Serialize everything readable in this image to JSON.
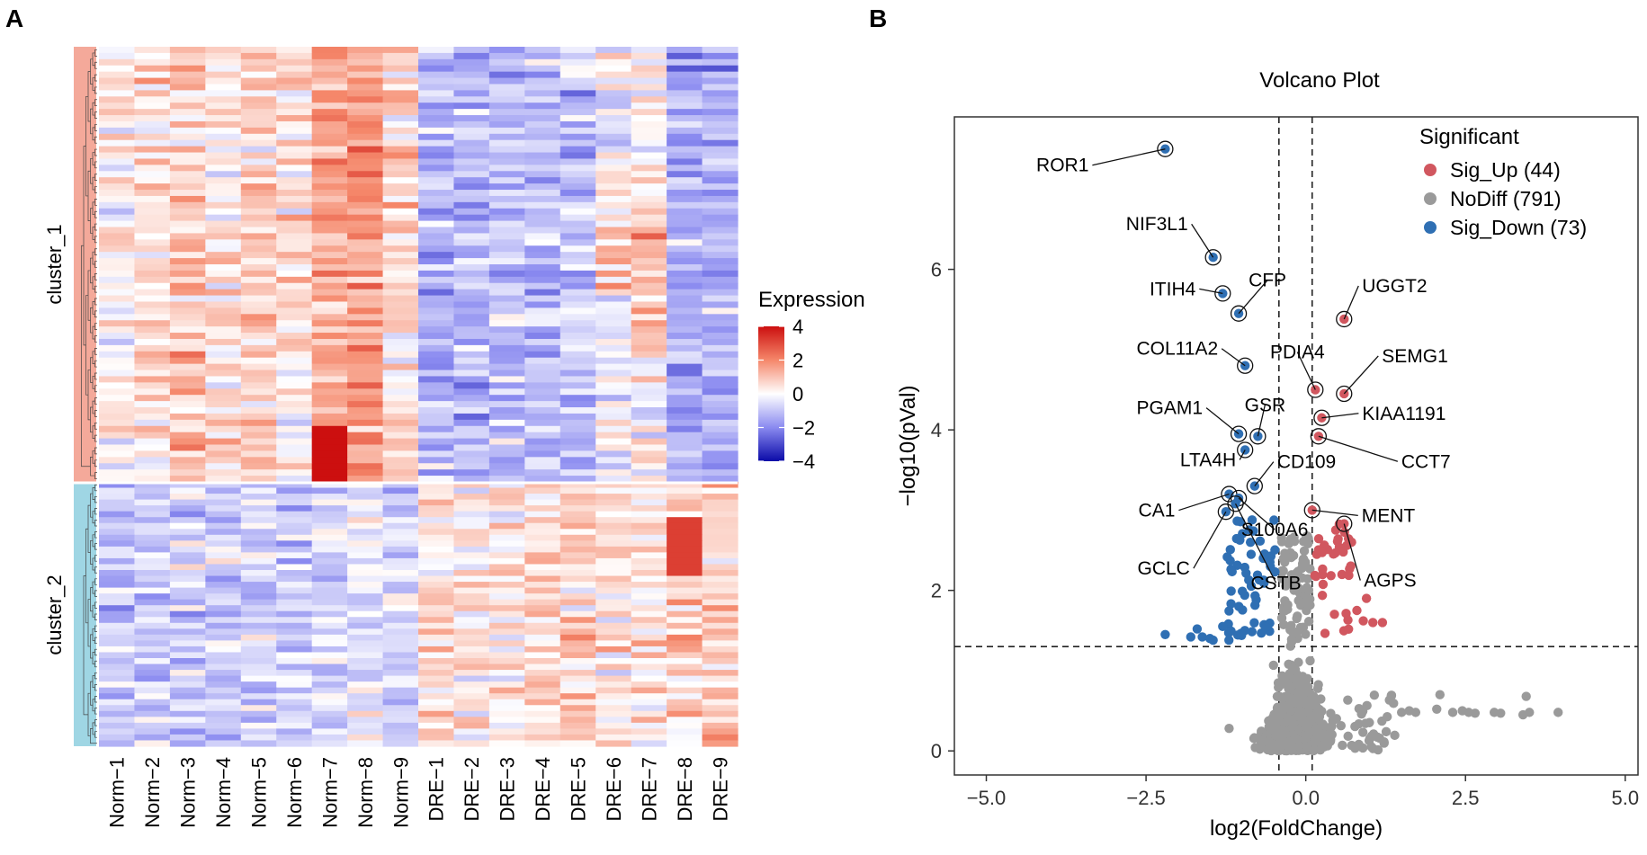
{
  "panel_labels": [
    "A",
    "B"
  ],
  "heatmap": {
    "samples": [
      "Norm−1",
      "Norm−2",
      "Norm−3",
      "Norm−4",
      "Norm−5",
      "Norm−6",
      "Norm−7",
      "Norm−8",
      "Norm−9",
      "DRE−1",
      "DRE−2",
      "DRE−3",
      "DRE−4",
      "DRE−5",
      "DRE−6",
      "DRE−7",
      "DRE−8",
      "DRE−9"
    ],
    "clusters": [
      {
        "name": "cluster_1",
        "color": "#f4a99a"
      },
      {
        "name": "cluster_2",
        "color": "#9fd6e4"
      }
    ],
    "legend_title": "Expression",
    "legend_ticks": [
      "4",
      "2",
      "0",
      "−2",
      "−4"
    ],
    "legend_values": [
      4,
      2,
      0,
      -2,
      -4
    ],
    "colors": {
      "low": "#1a1ab5",
      "mid": "#ffffff",
      "high": "#e0261c"
    }
  },
  "chart_data": {
    "type": "scatter",
    "title": "Volcano Plot",
    "xlabel": "log2(FoldChange)",
    "ylabel": "−log10(pVal)",
    "xlim": [
      -5.5,
      5.2
    ],
    "ylim": [
      -0.3,
      7.9
    ],
    "xticks": [
      -5,
      -2.5,
      0,
      2.5,
      5
    ],
    "xtick_labels": [
      "−5.0",
      "−2.5",
      "0.0",
      "2.5",
      "5.0"
    ],
    "yticks": [
      0,
      2,
      4,
      6
    ],
    "ytick_labels": [
      "0",
      "2",
      "4",
      "6"
    ],
    "thresholds": {
      "x": [
        -0.42,
        0.1
      ],
      "y": 1.3
    },
    "legend": {
      "title": "Significant",
      "items": [
        {
          "label": "Sig_Up (44)",
          "color": "#d1575f"
        },
        {
          "label": "NoDiff (791)",
          "color": "#9a9a9a"
        },
        {
          "label": "Sig_Down (73)",
          "color": "#2f6fb3"
        }
      ]
    },
    "labeled_points": [
      {
        "gene": "ROR1",
        "x": -2.2,
        "y": 7.5,
        "group": "down"
      },
      {
        "gene": "NIF3L1",
        "x": -1.45,
        "y": 6.15,
        "group": "down"
      },
      {
        "gene": "ITIH4",
        "x": -1.3,
        "y": 5.7,
        "group": "down"
      },
      {
        "gene": "CFP",
        "x": -1.05,
        "y": 5.45,
        "group": "down"
      },
      {
        "gene": "UGGT2",
        "x": 0.6,
        "y": 5.38,
        "group": "up"
      },
      {
        "gene": "COL11A2",
        "x": -0.95,
        "y": 4.8,
        "group": "down"
      },
      {
        "gene": "PDIA4",
        "x": 0.15,
        "y": 4.5,
        "group": "up"
      },
      {
        "gene": "SEMG1",
        "x": 0.6,
        "y": 4.45,
        "group": "up"
      },
      {
        "gene": "KIAA1191",
        "x": 0.25,
        "y": 4.15,
        "group": "up"
      },
      {
        "gene": "PGAM1",
        "x": -1.05,
        "y": 3.95,
        "group": "down"
      },
      {
        "gene": "GSR",
        "x": -0.75,
        "y": 3.92,
        "group": "down"
      },
      {
        "gene": "CCT7",
        "x": 0.2,
        "y": 3.92,
        "group": "up"
      },
      {
        "gene": "LTA4H",
        "x": -0.95,
        "y": 3.75,
        "group": "down"
      },
      {
        "gene": "CD109",
        "x": -0.8,
        "y": 3.3,
        "group": "down"
      },
      {
        "gene": "CA1",
        "x": -1.2,
        "y": 3.2,
        "group": "down"
      },
      {
        "gene": "S100A6",
        "x": -1.05,
        "y": 3.15,
        "group": "down"
      },
      {
        "gene": "GCLC",
        "x": -1.25,
        "y": 2.98,
        "group": "down"
      },
      {
        "gene": "CSTB",
        "x": -1.1,
        "y": 3.08,
        "group": "down"
      },
      {
        "gene": "MENT",
        "x": 0.1,
        "y": 3.0,
        "group": "up"
      },
      {
        "gene": "AGPS",
        "x": 0.6,
        "y": 2.83,
        "group": "up"
      }
    ],
    "far_right_nodiff": [
      {
        "x": 1.5,
        "y": 0.48
      },
      {
        "x": 1.62,
        "y": 0.5
      },
      {
        "x": 1.72,
        "y": 0.48
      },
      {
        "x": 2.05,
        "y": 0.52
      },
      {
        "x": 2.3,
        "y": 0.48
      },
      {
        "x": 2.45,
        "y": 0.5
      },
      {
        "x": 2.55,
        "y": 0.48
      },
      {
        "x": 2.65,
        "y": 0.47
      },
      {
        "x": 2.95,
        "y": 0.48
      },
      {
        "x": 3.05,
        "y": 0.47
      },
      {
        "x": 3.4,
        "y": 0.45
      },
      {
        "x": 3.45,
        "y": 0.68
      },
      {
        "x": 3.5,
        "y": 0.48
      },
      {
        "x": 3.95,
        "y": 0.48
      },
      {
        "x": 2.1,
        "y": 0.7
      },
      {
        "x": -1.2,
        "y": 0.28
      }
    ]
  }
}
